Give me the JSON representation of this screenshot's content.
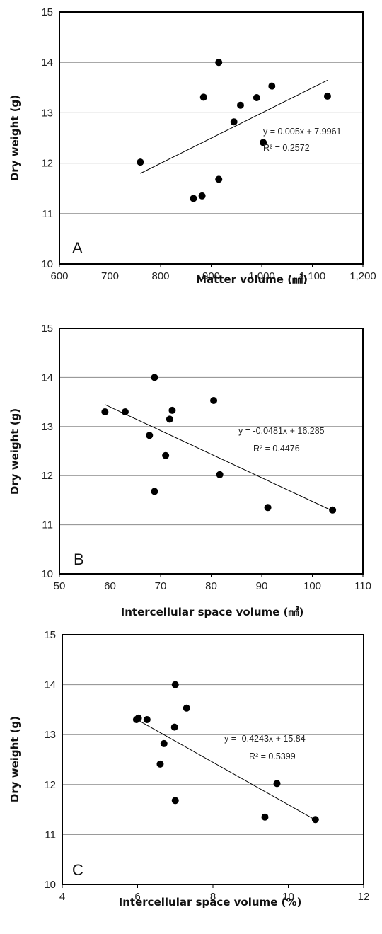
{
  "chart_data": [
    {
      "type": "scatter",
      "panel_label": "A",
      "xlabel": "Matter volume (㎣)",
      "ylabel": "Dry weight (g)",
      "xlim": [
        600,
        1200
      ],
      "ylim": [
        10,
        15
      ],
      "x_ticks": [
        "600",
        "700",
        "800",
        "900",
        "1,000",
        "1,100",
        "1,200"
      ],
      "y_ticks": [
        "10",
        "11",
        "12",
        "13",
        "14",
        "15"
      ],
      "grid": "horizontal",
      "points": [
        {
          "x": 760,
          "y": 12.02
        },
        {
          "x": 865,
          "y": 11.3
        },
        {
          "x": 882,
          "y": 11.35
        },
        {
          "x": 885,
          "y": 13.31
        },
        {
          "x": 915,
          "y": 14.0
        },
        {
          "x": 915,
          "y": 11.68
        },
        {
          "x": 945,
          "y": 12.82
        },
        {
          "x": 958,
          "y": 13.15
        },
        {
          "x": 990,
          "y": 13.3
        },
        {
          "x": 1003,
          "y": 12.41
        },
        {
          "x": 1020,
          "y": 13.53
        },
        {
          "x": 1130,
          "y": 13.33
        }
      ],
      "trendline": {
        "slope": 0.005,
        "intercept": 7.9961,
        "x_from": 760,
        "x_to": 1130
      },
      "equation": "y = 0.005x + 7.9961",
      "r2": "R² = 0.2572"
    },
    {
      "type": "scatter",
      "panel_label": "B",
      "xlabel": "Intercellular space volume (㎣)",
      "ylabel": "Dry weight (g)",
      "xlim": [
        50,
        110
      ],
      "ylim": [
        10,
        15
      ],
      "x_ticks": [
        "50",
        "60",
        "70",
        "80",
        "90",
        "100",
        "110"
      ],
      "y_ticks": [
        "10",
        "11",
        "12",
        "13",
        "14",
        "15"
      ],
      "grid": "horizontal",
      "points": [
        {
          "x": 59,
          "y": 13.3
        },
        {
          "x": 63,
          "y": 13.3
        },
        {
          "x": 67.8,
          "y": 12.82
        },
        {
          "x": 68.8,
          "y": 14.0
        },
        {
          "x": 68.8,
          "y": 11.68
        },
        {
          "x": 71,
          "y": 12.41
        },
        {
          "x": 71.8,
          "y": 13.15
        },
        {
          "x": 72.3,
          "y": 13.33
        },
        {
          "x": 80.5,
          "y": 13.53
        },
        {
          "x": 81.7,
          "y": 12.02
        },
        {
          "x": 91.2,
          "y": 11.35
        },
        {
          "x": 104,
          "y": 11.3
        }
      ],
      "trendline": {
        "slope": -0.0481,
        "intercept": 16.285,
        "x_from": 59,
        "x_to": 104
      },
      "equation": "y = -0.0481x + 16.285",
      "r2": "R² = 0.4476"
    },
    {
      "type": "scatter",
      "panel_label": "C",
      "xlabel": "Intercellular space volume (%)",
      "ylabel": "Dry weight (g)",
      "xlim": [
        4,
        12
      ],
      "ylim": [
        10,
        15
      ],
      "x_ticks": [
        "4",
        "6",
        "8",
        "10",
        "12"
      ],
      "y_ticks": [
        "10",
        "11",
        "12",
        "13",
        "14",
        "15"
      ],
      "grid": "horizontal",
      "points": [
        {
          "x": 5.97,
          "y": 13.3
        },
        {
          "x": 6.02,
          "y": 13.33
        },
        {
          "x": 6.25,
          "y": 13.3
        },
        {
          "x": 6.6,
          "y": 12.41
        },
        {
          "x": 6.7,
          "y": 12.82
        },
        {
          "x": 6.98,
          "y": 13.15
        },
        {
          "x": 7.0,
          "y": 14.0
        },
        {
          "x": 7.0,
          "y": 11.68
        },
        {
          "x": 7.3,
          "y": 13.53
        },
        {
          "x": 9.38,
          "y": 11.35
        },
        {
          "x": 9.7,
          "y": 12.02
        },
        {
          "x": 10.72,
          "y": 11.3
        }
      ],
      "trendline": {
        "slope": -0.4243,
        "intercept": 15.84,
        "x_from": 5.97,
        "x_to": 10.72
      },
      "equation": "y = -0.4243x + 15.84",
      "r2": "R² = 0.5399"
    }
  ]
}
